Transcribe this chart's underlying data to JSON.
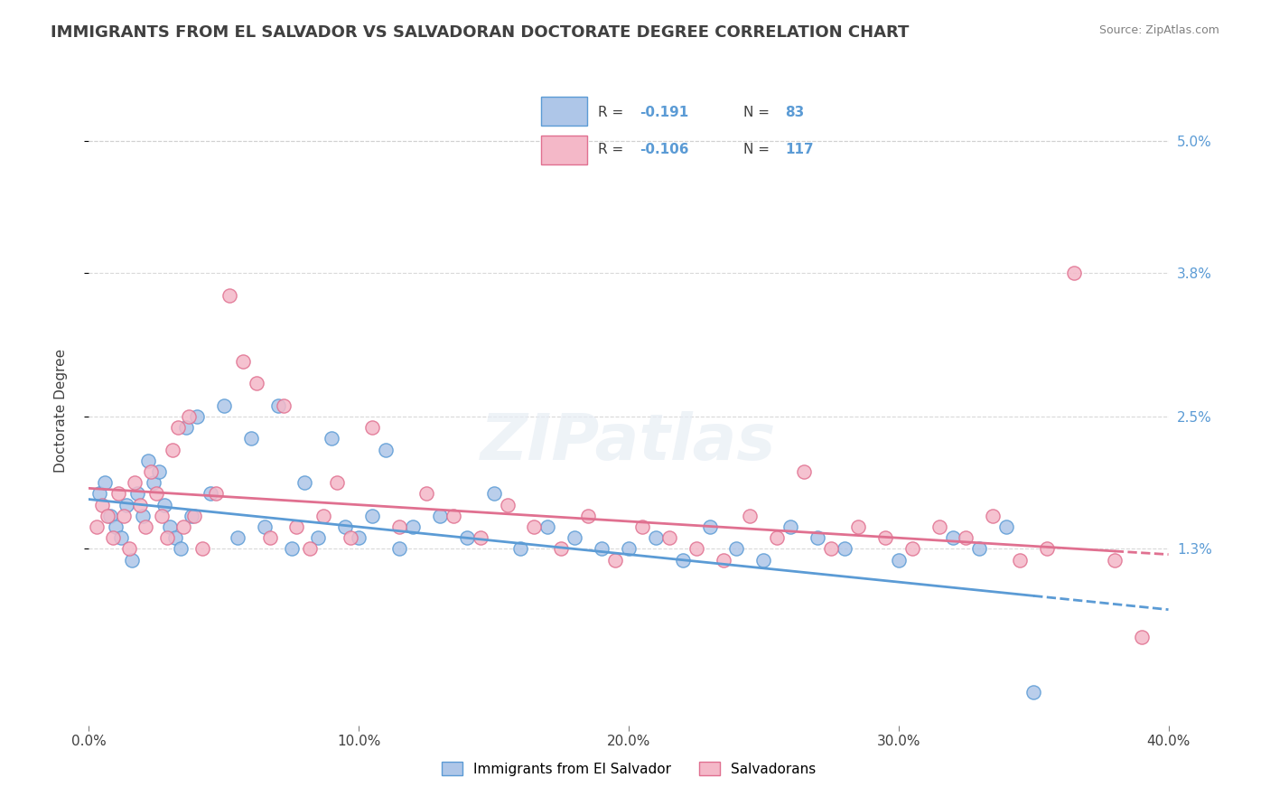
{
  "title": "IMMIGRANTS FROM EL SALVADOR VS SALVADORAN DOCTORATE DEGREE CORRELATION CHART",
  "source_text": "Source: ZipAtlas.com",
  "xlabel": "",
  "ylabel": "Doctorate Degree",
  "xlim": [
    0.0,
    40.0
  ],
  "ylim": [
    -0.3,
    5.4
  ],
  "ytick_labels": [
    "1.3%",
    "2.5%",
    "3.8%",
    "5.0%"
  ],
  "ytick_values": [
    1.3,
    2.5,
    3.8,
    5.0
  ],
  "xtick_labels": [
    "0.0%",
    "10.0%",
    "20.0%",
    "30.0%",
    "40.0%"
  ],
  "xtick_values": [
    0.0,
    10.0,
    20.0,
    30.0,
    40.0
  ],
  "series1_label": "Immigrants from El Salvador",
  "series1_R": "-0.191",
  "series1_N": "83",
  "series1_color": "#aec6e8",
  "series1_edge_color": "#5b9bd5",
  "series2_label": "Salvadorans",
  "series2_R": "-0.106",
  "series2_N": "117",
  "series2_color": "#f4b8c8",
  "series2_edge_color": "#e07090",
  "trend1_color": "#5b9bd5",
  "trend2_color": "#e07090",
  "background_color": "#ffffff",
  "grid_color": "#d0d0d0",
  "watermark": "ZIPatlas",
  "legend_R_color": "#404040",
  "legend_N_color": "#5b9bd5",
  "blue_scatter_x": [
    0.4,
    0.6,
    0.8,
    1.0,
    1.2,
    1.4,
    1.6,
    1.8,
    2.0,
    2.2,
    2.4,
    2.6,
    2.8,
    3.0,
    3.2,
    3.4,
    3.6,
    3.8,
    4.0,
    4.5,
    5.0,
    5.5,
    6.0,
    6.5,
    7.0,
    7.5,
    8.0,
    8.5,
    9.0,
    9.5,
    10.0,
    10.5,
    11.0,
    11.5,
    12.0,
    13.0,
    14.0,
    15.0,
    16.0,
    17.0,
    18.0,
    19.0,
    20.0,
    21.0,
    22.0,
    23.0,
    24.0,
    25.0,
    26.0,
    27.0,
    28.0,
    30.0,
    32.0,
    33.0,
    34.0,
    35.0
  ],
  "blue_scatter_y": [
    1.8,
    1.9,
    1.6,
    1.5,
    1.4,
    1.7,
    1.2,
    1.8,
    1.6,
    2.1,
    1.9,
    2.0,
    1.7,
    1.5,
    1.4,
    1.3,
    2.4,
    1.6,
    2.5,
    1.8,
    2.6,
    1.4,
    2.3,
    1.5,
    2.6,
    1.3,
    1.9,
    1.4,
    2.3,
    1.5,
    1.4,
    1.6,
    2.2,
    1.3,
    1.5,
    1.6,
    1.4,
    1.8,
    1.3,
    1.5,
    1.4,
    1.3,
    1.3,
    1.4,
    1.2,
    1.5,
    1.3,
    1.2,
    1.5,
    1.4,
    1.3,
    1.2,
    1.4,
    1.3,
    1.5,
    0.0
  ],
  "pink_scatter_x": [
    0.3,
    0.5,
    0.7,
    0.9,
    1.1,
    1.3,
    1.5,
    1.7,
    1.9,
    2.1,
    2.3,
    2.5,
    2.7,
    2.9,
    3.1,
    3.3,
    3.5,
    3.7,
    3.9,
    4.2,
    4.7,
    5.2,
    5.7,
    6.2,
    6.7,
    7.2,
    7.7,
    8.2,
    8.7,
    9.2,
    9.7,
    10.5,
    11.5,
    12.5,
    13.5,
    14.5,
    15.5,
    16.5,
    17.5,
    18.5,
    19.5,
    20.5,
    21.5,
    22.5,
    23.5,
    24.5,
    25.5,
    26.5,
    27.5,
    28.5,
    29.5,
    30.5,
    31.5,
    32.5,
    33.5,
    34.5,
    35.5,
    36.5,
    38.0,
    39.0
  ],
  "pink_scatter_y": [
    1.5,
    1.7,
    1.6,
    1.4,
    1.8,
    1.6,
    1.3,
    1.9,
    1.7,
    1.5,
    2.0,
    1.8,
    1.6,
    1.4,
    2.2,
    2.4,
    1.5,
    2.5,
    1.6,
    1.3,
    1.8,
    3.6,
    3.0,
    2.8,
    1.4,
    2.6,
    1.5,
    1.3,
    1.6,
    1.9,
    1.4,
    2.4,
    1.5,
    1.8,
    1.6,
    1.4,
    1.7,
    1.5,
    1.3,
    1.6,
    1.2,
    1.5,
    1.4,
    1.3,
    1.2,
    1.6,
    1.4,
    2.0,
    1.3,
    1.5,
    1.4,
    1.3,
    1.5,
    1.4,
    1.6,
    1.2,
    1.3,
    3.8,
    1.2,
    0.5
  ]
}
